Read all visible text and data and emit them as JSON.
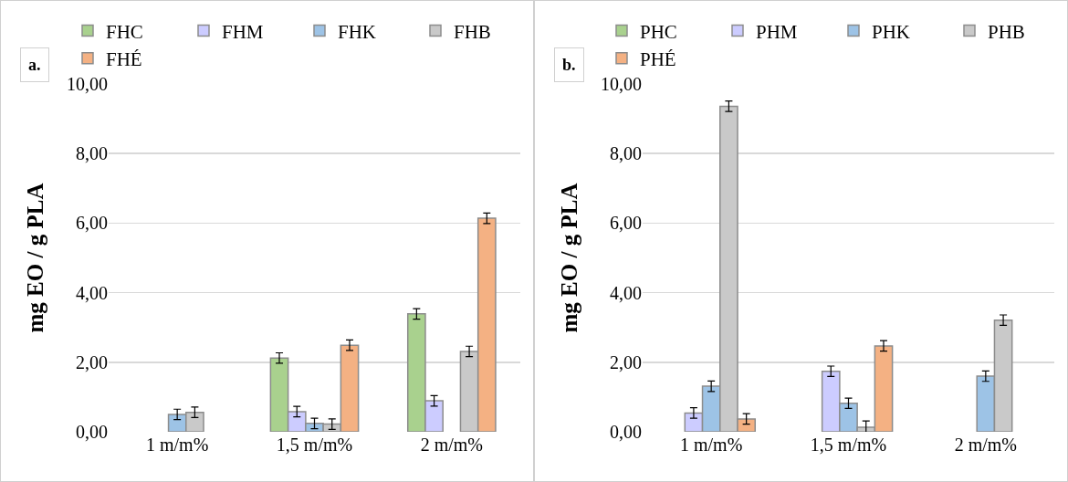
{
  "chart_data": [
    {
      "type": "bar",
      "title": "a.",
      "ylabel": "mg EO / g PLA",
      "categories": [
        "1 m/m%",
        "1,5 m/m%",
        "2 m/m%"
      ],
      "series": [
        {
          "name": "FHC",
          "color": "#a9d18e",
          "values": [
            null,
            2.12,
            3.39
          ],
          "errors": [
            null,
            0.15,
            0.15
          ]
        },
        {
          "name": "FHM",
          "color": "#ccccff",
          "values": [
            null,
            0.58,
            0.89
          ],
          "errors": [
            null,
            0.15,
            0.15
          ]
        },
        {
          "name": "FHK",
          "color": "#9dc3e6",
          "values": [
            0.5,
            0.24,
            null
          ],
          "errors": [
            0.15,
            0.15,
            null
          ]
        },
        {
          "name": "FHB",
          "color": "#c9c9c9",
          "values": [
            0.56,
            0.22,
            2.31
          ],
          "errors": [
            0.15,
            0.15,
            0.15
          ]
        },
        {
          "name": "FHÉ",
          "color": "#f4b183",
          "values": [
            null,
            2.49,
            6.14
          ],
          "errors": [
            null,
            0.15,
            0.15
          ]
        }
      ],
      "ylim": [
        0,
        10
      ],
      "yticks": [
        {
          "value": 0,
          "label": "0,00"
        },
        {
          "value": 2,
          "label": "2,00"
        },
        {
          "value": 4,
          "label": "4,00"
        },
        {
          "value": 6,
          "label": "6,00"
        },
        {
          "value": 8,
          "label": "8,00"
        },
        {
          "value": 10,
          "label": "10,00"
        }
      ],
      "grid": "y",
      "legend": "top"
    },
    {
      "type": "bar",
      "title": "b.",
      "ylabel": "mg EO / g PLA",
      "categories": [
        "1 m/m%",
        "1,5 m/m%",
        "2 m/m%"
      ],
      "series": [
        {
          "name": "PHC",
          "color": "#a9d18e",
          "values": [
            null,
            null,
            null
          ],
          "errors": [
            null,
            null,
            null
          ]
        },
        {
          "name": "PHM",
          "color": "#ccccff",
          "values": [
            0.54,
            1.74,
            null
          ],
          "errors": [
            0.15,
            0.15,
            null
          ]
        },
        {
          "name": "PHK",
          "color": "#9dc3e6",
          "values": [
            1.31,
            0.82,
            1.6
          ],
          "errors": [
            0.15,
            0.15,
            0.15
          ]
        },
        {
          "name": "PHB",
          "color": "#c9c9c9",
          "values": [
            9.36,
            0.13,
            3.21
          ],
          "errors": [
            0.15,
            0.18,
            0.15
          ]
        },
        {
          "name": "PHÉ",
          "color": "#f4b183",
          "values": [
            0.37,
            2.47,
            null
          ],
          "errors": [
            0.15,
            0.15,
            null
          ]
        }
      ],
      "ylim": [
        0,
        10
      ],
      "yticks": [
        {
          "value": 0,
          "label": "0,00"
        },
        {
          "value": 2,
          "label": "2,00"
        },
        {
          "value": 4,
          "label": "4,00"
        },
        {
          "value": 6,
          "label": "6,00"
        },
        {
          "value": 8,
          "label": "8,00"
        },
        {
          "value": 10,
          "label": "10,00"
        }
      ],
      "grid": "y",
      "legend": "top"
    }
  ]
}
